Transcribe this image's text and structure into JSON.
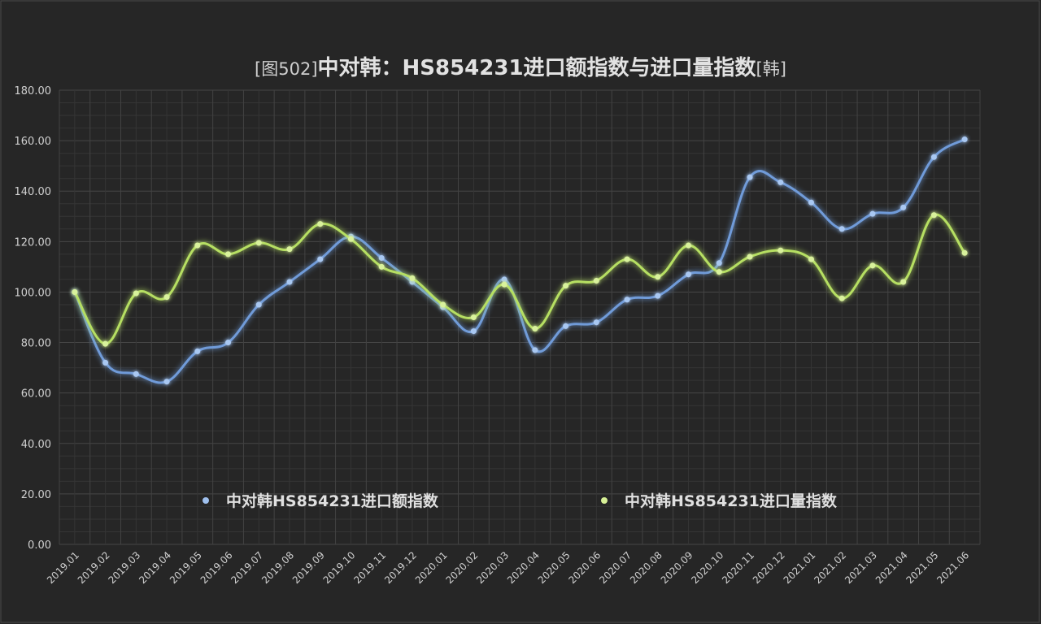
{
  "chart_data": {
    "type": "line",
    "title_prefix": "[图502]",
    "title_main": "中对韩：HS854231进口额指数与进口量指数",
    "title_suffix": "[韩]",
    "categories": [
      "2019.01",
      "2019.02",
      "2019.03",
      "2019.04",
      "2019.05",
      "2019.06",
      "2019.07",
      "2019.08",
      "2019.09",
      "2019.10",
      "2019.11",
      "2019.12",
      "2020.01",
      "2020.02",
      "2020.03",
      "2020.04",
      "2020.05",
      "2020.06",
      "2020.07",
      "2020.08",
      "2020.09",
      "2020.10",
      "2020.11",
      "2020.12",
      "2021.01",
      "2021.02",
      "2021.03",
      "2021.04",
      "2021.05",
      "2021.06"
    ],
    "y_ticks": [
      "0.00",
      "20.00",
      "40.00",
      "60.00",
      "80.00",
      "100.00",
      "120.00",
      "140.00",
      "160.00",
      "180.00"
    ],
    "ylim": [
      0,
      180
    ],
    "grid": true,
    "legend_position": "bottom",
    "series": [
      {
        "name": "中对韩HS854231进口额指数",
        "color": "#6f9bd9",
        "values": [
          100,
          72,
          67.5,
          64.5,
          76.5,
          80,
          95,
          104,
          113,
          122,
          113.5,
          104,
          94,
          84.5,
          105,
          77,
          86.5,
          88,
          97,
          98.5,
          107,
          111.5,
          145.5,
          143.5,
          135.5,
          125,
          131,
          133.5,
          153.5,
          160.5
        ]
      },
      {
        "name": "中对韩HS854231进口量指数",
        "color": "#b6df62",
        "values": [
          100,
          79.5,
          99.5,
          98,
          118.5,
          115,
          119.5,
          117,
          127,
          121,
          110,
          105.5,
          95,
          90,
          103,
          85.5,
          102.5,
          104.5,
          113,
          106,
          118.5,
          108,
          114,
          116.5,
          113,
          97.5,
          110.5,
          104,
          130.5,
          115.5
        ]
      }
    ]
  }
}
